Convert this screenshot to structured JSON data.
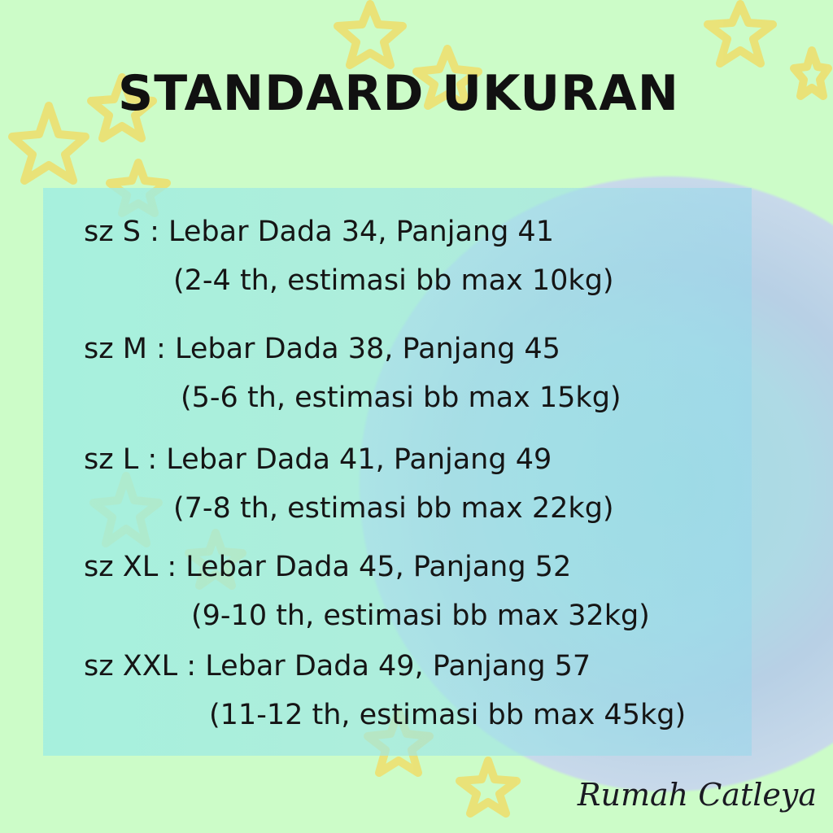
{
  "title": "STANDARD UKURAN",
  "sizes": [
    {
      "line1": "sz S : Lebar Dada 34, Panjang 41",
      "line2": "(2-4 th, estimasi bb max 10kg)"
    },
    {
      "line1": "sz M : Lebar Dada 38, Panjang 45",
      "line2": "(5-6 th, estimasi bb max 15kg)"
    },
    {
      "line1": "sz L : Lebar Dada 41, Panjang 49",
      "line2": "(7-8 th, estimasi bb max 22kg)"
    },
    {
      "line1": "sz XL : Lebar Dada 45, Panjang 52",
      "line2": "(9-10 th, estimasi bb max 32kg)"
    },
    {
      "line1": "sz XXL : Lebar Dada 49, Panjang 57",
      "line2": "(11-12 th, estimasi bb max 45kg)"
    }
  ],
  "signature": "Rumah Catleya",
  "colors": {
    "background": "#ccfcc8",
    "star": "#f0e060",
    "text": "#151515"
  }
}
